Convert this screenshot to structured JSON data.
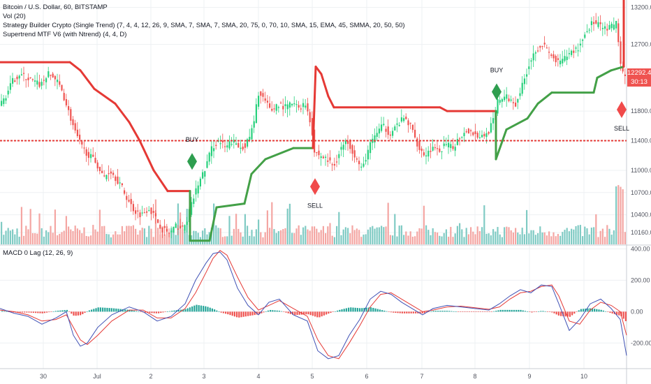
{
  "header": {
    "symbol_line": "Bitcoin / U.S. Dollar, 60, BITSTAMP",
    "volume_line": "Vol (20)",
    "strategy_line": "Strategy Builder Crypto (Single Trend) (7, 4, 4, 12, 26, 9, SMA, 7, SMA, 7, SMA, 20, 75, 0, 70, 10, SMA, 15, EMA, 45, SMMA, 20, 50, 50)",
    "supertrend_line": "Supertrend MTF V6 (with Ntrend) (4, 4, D)"
  },
  "macd_panel": {
    "title": "MACD 0 Lag (12, 26, 9)"
  },
  "price_scale": {
    "current_price": "12292.42",
    "countdown": "30:13",
    "badge_color": "#ef5350"
  },
  "colors": {
    "up": "#26d07c",
    "down": "#ef5350",
    "vol_up": "#80cbc4",
    "vol_down": "#f4a6a3",
    "supertrend_up": "#43a047",
    "supertrend_down": "#e53935",
    "macd": "#3f51b5",
    "signal": "#e53935",
    "hist_up": "#26a69a",
    "hist_down": "#ef5350",
    "buy_marker": "#2e9e4f",
    "sell_marker": "#f04a4a"
  },
  "chart_data": [
    {
      "type": "line",
      "title": "Bitcoin / U.S. Dollar, 60, BITSTAMP",
      "x_ticks": [
        "30",
        "Jul",
        "2",
        "3",
        "4",
        "5",
        "6",
        "7",
        "8",
        "9",
        "10"
      ],
      "y_ticks": [
        10160,
        10400,
        10700,
        11000,
        11400,
        11800,
        12700,
        13200
      ],
      "y_range": [
        10000,
        13300
      ],
      "price_path": [
        [
          0,
          11850
        ],
        [
          10,
          12000
        ],
        [
          20,
          12200
        ],
        [
          30,
          12300
        ],
        [
          40,
          12250
        ],
        [
          50,
          12200
        ],
        [
          60,
          12150
        ],
        [
          70,
          12300
        ],
        [
          80,
          12250
        ],
        [
          90,
          12100
        ],
        [
          100,
          11800
        ],
        [
          110,
          11500
        ],
        [
          120,
          11300
        ],
        [
          130,
          11200
        ],
        [
          140,
          11100
        ],
        [
          150,
          10900
        ],
        [
          160,
          11000
        ],
        [
          175,
          10800
        ],
        [
          185,
          10600
        ],
        [
          195,
          10450
        ],
        [
          205,
          10400
        ],
        [
          215,
          10500
        ],
        [
          225,
          10350
        ],
        [
          235,
          10200
        ],
        [
          245,
          10150
        ],
        [
          255,
          10250
        ],
        [
          265,
          10200
        ],
        [
          275,
          10500
        ],
        [
          285,
          10800
        ],
        [
          295,
          11000
        ],
        [
          305,
          11300
        ],
        [
          315,
          11400
        ],
        [
          325,
          11300
        ],
        [
          335,
          11400
        ],
        [
          345,
          11300
        ],
        [
          355,
          11350
        ],
        [
          365,
          11600
        ],
        [
          372,
          12050
        ],
        [
          380,
          11950
        ],
        [
          390,
          11800
        ],
        [
          400,
          11900
        ],
        [
          410,
          11850
        ],
        [
          420,
          11900
        ],
        [
          430,
          11850
        ],
        [
          440,
          11900
        ],
        [
          448,
          11600
        ],
        [
          452,
          11250
        ],
        [
          460,
          11200
        ],
        [
          470,
          11150
        ],
        [
          480,
          11050
        ],
        [
          490,
          11300
        ],
        [
          500,
          11400
        ],
        [
          510,
          11200
        ],
        [
          520,
          11000
        ],
        [
          530,
          11300
        ],
        [
          540,
          11500
        ],
        [
          550,
          11600
        ],
        [
          560,
          11500
        ],
        [
          570,
          11600
        ],
        [
          580,
          11700
        ],
        [
          590,
          11600
        ],
        [
          600,
          11350
        ],
        [
          610,
          11200
        ],
        [
          620,
          11300
        ],
        [
          630,
          11250
        ],
        [
          640,
          11350
        ],
        [
          650,
          11300
        ],
        [
          660,
          11450
        ],
        [
          670,
          11550
        ],
        [
          680,
          11500
        ],
        [
          690,
          11450
        ],
        [
          700,
          11500
        ],
        [
          710,
          11700
        ],
        [
          715,
          11950
        ],
        [
          725,
          12000
        ],
        [
          740,
          11900
        ],
        [
          750,
          12150
        ],
        [
          760,
          12450
        ],
        [
          770,
          12650
        ],
        [
          780,
          12700
        ],
        [
          790,
          12550
        ],
        [
          800,
          12450
        ],
        [
          810,
          12500
        ],
        [
          820,
          12600
        ],
        [
          830,
          12650
        ],
        [
          840,
          12850
        ],
        [
          850,
          13000
        ],
        [
          860,
          12950
        ],
        [
          870,
          12900
        ],
        [
          880,
          12950
        ],
        [
          886,
          13000
        ],
        [
          889,
          12500
        ],
        [
          893,
          12300
        ],
        [
          897,
          12250
        ]
      ],
      "supertrend": [
        [
          0,
          12460
        ],
        [
          100,
          12460
        ],
        [
          115,
          12350
        ],
        [
          135,
          12100
        ],
        [
          165,
          11900
        ],
        [
          185,
          11650
        ],
        [
          200,
          11400
        ],
        [
          220,
          11000
        ],
        [
          240,
          10720
        ],
        [
          272,
          10720
        ],
        [
          272,
          10050
        ],
        [
          300,
          10050
        ],
        [
          310,
          10500
        ],
        [
          350,
          10550
        ],
        [
          360,
          10950
        ],
        [
          380,
          11150
        ],
        [
          420,
          11300
        ],
        [
          448,
          11300
        ],
        [
          452,
          12400
        ],
        [
          460,
          12300
        ],
        [
          470,
          12000
        ],
        [
          478,
          11850
        ],
        [
          630,
          11850
        ],
        [
          640,
          11800
        ],
        [
          710,
          11800
        ],
        [
          710,
          11150
        ],
        [
          725,
          11550
        ],
        [
          755,
          11700
        ],
        [
          770,
          11900
        ],
        [
          790,
          12050
        ],
        [
          850,
          12050
        ],
        [
          855,
          12250
        ],
        [
          875,
          12350
        ],
        [
          893,
          12400
        ],
        [
          893,
          13300
        ]
      ],
      "supertrend_up_segments": [
        [
          272,
          448
        ],
        [
          710,
          893
        ]
      ],
      "resistance_level": 11400,
      "signals": [
        {
          "label": "BUY",
          "x": 275,
          "price": 11120,
          "side": "buy"
        },
        {
          "label": "SELL",
          "x": 451,
          "price": 10780,
          "side": "sell"
        },
        {
          "label": "BUY",
          "x": 711,
          "price": 12060,
          "side": "buy"
        },
        {
          "label": "SELL",
          "x": 890,
          "price": 11820,
          "side": "sell"
        }
      ]
    },
    {
      "type": "line",
      "title": "MACD 0 Lag (12, 26, 9)",
      "y_ticks": [
        400,
        200,
        0,
        -200
      ],
      "y_range": [
        -350,
        420
      ],
      "series": [
        {
          "name": "MACD",
          "values": [
            [
              0,
              20
            ],
            [
              20,
              -10
            ],
            [
              40,
              -30
            ],
            [
              60,
              -80
            ],
            [
              80,
              -40
            ],
            [
              95,
              0
            ],
            [
              105,
              -150
            ],
            [
              115,
              -220
            ],
            [
              125,
              -200
            ],
            [
              140,
              -100
            ],
            [
              160,
              -20
            ],
            [
              185,
              30
            ],
            [
              205,
              0
            ],
            [
              225,
              -60
            ],
            [
              245,
              -30
            ],
            [
              265,
              50
            ],
            [
              280,
              200
            ],
            [
              295,
              310
            ],
            [
              305,
              370
            ],
            [
              315,
              380
            ],
            [
              325,
              330
            ],
            [
              340,
              150
            ],
            [
              355,
              40
            ],
            [
              370,
              -20
            ],
            [
              385,
              60
            ],
            [
              400,
              80
            ],
            [
              420,
              -20
            ],
            [
              440,
              -60
            ],
            [
              455,
              -250
            ],
            [
              470,
              -300
            ],
            [
              485,
              -280
            ],
            [
              500,
              -150
            ],
            [
              515,
              -50
            ],
            [
              530,
              80
            ],
            [
              545,
              130
            ],
            [
              560,
              110
            ],
            [
              575,
              60
            ],
            [
              590,
              20
            ],
            [
              605,
              -20
            ],
            [
              620,
              20
            ],
            [
              640,
              40
            ],
            [
              660,
              30
            ],
            [
              680,
              20
            ],
            [
              700,
              10
            ],
            [
              715,
              50
            ],
            [
              730,
              100
            ],
            [
              745,
              140
            ],
            [
              760,
              120
            ],
            [
              775,
              170
            ],
            [
              790,
              160
            ],
            [
              800,
              50
            ],
            [
              815,
              -120
            ],
            [
              830,
              -50
            ],
            [
              845,
              50
            ],
            [
              860,
              80
            ],
            [
              875,
              20
            ],
            [
              888,
              -50
            ],
            [
              897,
              -280
            ]
          ]
        },
        {
          "name": "Signal",
          "values": [
            [
              0,
              10
            ],
            [
              20,
              0
            ],
            [
              40,
              -20
            ],
            [
              60,
              -60
            ],
            [
              80,
              -50
            ],
            [
              95,
              -20
            ],
            [
              105,
              -100
            ],
            [
              115,
              -180
            ],
            [
              125,
              -210
            ],
            [
              140,
              -150
            ],
            [
              160,
              -60
            ],
            [
              185,
              10
            ],
            [
              205,
              10
            ],
            [
              225,
              -40
            ],
            [
              245,
              -40
            ],
            [
              265,
              20
            ],
            [
              280,
              120
            ],
            [
              295,
              250
            ],
            [
              305,
              340
            ],
            [
              315,
              390
            ],
            [
              325,
              360
            ],
            [
              340,
              220
            ],
            [
              355,
              90
            ],
            [
              370,
              10
            ],
            [
              385,
              40
            ],
            [
              400,
              70
            ],
            [
              420,
              20
            ],
            [
              440,
              -30
            ],
            [
              455,
              -180
            ],
            [
              470,
              -280
            ],
            [
              485,
              -300
            ],
            [
              500,
              -200
            ],
            [
              515,
              -90
            ],
            [
              530,
              30
            ],
            [
              545,
              110
            ],
            [
              560,
              120
            ],
            [
              575,
              80
            ],
            [
              590,
              40
            ],
            [
              605,
              0
            ],
            [
              620,
              10
            ],
            [
              640,
              30
            ],
            [
              660,
              35
            ],
            [
              680,
              25
            ],
            [
              700,
              15
            ],
            [
              715,
              30
            ],
            [
              730,
              80
            ],
            [
              745,
              120
            ],
            [
              760,
              130
            ],
            [
              775,
              160
            ],
            [
              790,
              170
            ],
            [
              800,
              100
            ],
            [
              815,
              -60
            ],
            [
              830,
              -80
            ],
            [
              845,
              10
            ],
            [
              860,
              60
            ],
            [
              875,
              40
            ],
            [
              888,
              0
            ],
            [
              897,
              -150
            ]
          ]
        }
      ]
    }
  ]
}
